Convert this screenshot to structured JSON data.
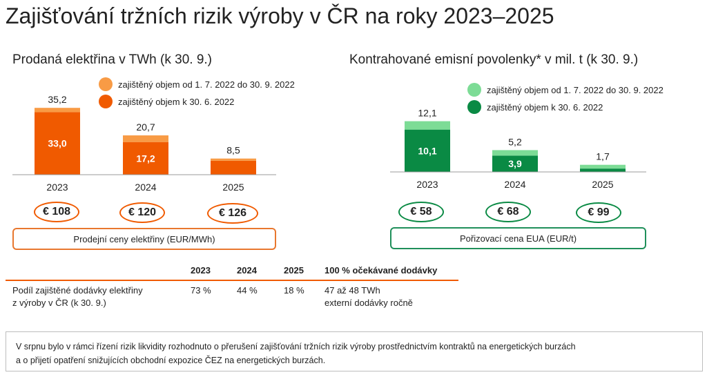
{
  "title": "Zajišťování tržních rizik výroby v ČR na roky 2023–2025",
  "chart_data": [
    {
      "type": "bar",
      "title": "Prodaná elektřina v TWh (k 30. 9.)",
      "categories": [
        "2023",
        "2024",
        "2025"
      ],
      "series": [
        {
          "name": "zajištěný objem k 30. 6. 2022",
          "values": [
            33.0,
            17.2,
            7.3
          ],
          "color": "#f05a00"
        },
        {
          "name": "zajištěný objem od 1. 7. 2022 do 30. 9. 2022",
          "values": [
            2.2,
            3.5,
            1.2
          ],
          "color": "#f89b45"
        }
      ],
      "inner_labels": [
        "33,0",
        "17,2",
        ""
      ],
      "total_labels": [
        "35,2",
        "20,7",
        "8,5"
      ],
      "totals": [
        35.2,
        20.7,
        8.5
      ],
      "ylim": [
        0,
        40
      ]
    },
    {
      "type": "bar",
      "title": "Kontrahované emisní povolenky* v mil. t (k 30. 9.)",
      "categories": [
        "2023",
        "2024",
        "2025"
      ],
      "series": [
        {
          "name": "zajištěný objem k 30. 6. 2022",
          "values": [
            10.1,
            3.9,
            0.8
          ],
          "color": "#0a8a44"
        },
        {
          "name": "zajištěný objem od 1. 7. 2022 do 30. 9. 2022",
          "values": [
            2.0,
            1.3,
            0.9
          ],
          "color": "#7ddc96"
        }
      ],
      "inner_labels": [
        "10,1",
        "3,9",
        ""
      ],
      "total_labels": [
        "12,1",
        "5,2",
        "1,7"
      ],
      "totals": [
        12.1,
        5.2,
        1.7
      ],
      "ylim": [
        0,
        14
      ]
    }
  ],
  "left_legend": [
    {
      "label": "zajištěný objem od 1. 7. 2022 do 30. 9. 2022",
      "color": "#f89b45"
    },
    {
      "label": "zajištěný objem k 30. 6. 2022",
      "color": "#f05a00"
    }
  ],
  "right_legend": [
    {
      "label": "zajištěný objem od 1. 7. 2022 do 30. 9. 2022",
      "color": "#7ddc96"
    },
    {
      "label": "zajištěný objem k 30. 6. 2022",
      "color": "#0a8a44"
    }
  ],
  "left_prices": [
    "€ 108",
    "€ 120",
    "€ 126"
  ],
  "left_price_caption": "Prodejní ceny elektřiny (EUR/MWh)",
  "right_prices": [
    "€ 58",
    "€ 68",
    "€ 99"
  ],
  "right_price_caption": "Pořizovací cena EUA (EUR/t)",
  "colors": {
    "orange": "#f05a00",
    "green": "#0a8a44"
  },
  "table": {
    "headers": [
      "2023",
      "2024",
      "2025",
      "100 % očekávané dodávky"
    ],
    "row_label_line1": "Podíl zajištěné dodávky elektřiny",
    "row_label_line2": "z výroby v ČR (k 30. 9.)",
    "values": [
      "73 %",
      "44 %",
      "18 %"
    ],
    "expected_line1": "47 až 48 TWh",
    "expected_line2": "externí dodávky ročně"
  },
  "note": {
    "line1": "V srpnu bylo v rámci řízení rizik likvidity rozhodnuto o přerušení zajišťování tržních rizik výroby prostřednictvím kontraktů na energetických burzách",
    "line2": "a o přijetí opatření snižujících obchodní expozice ČEZ na energetických burzách."
  }
}
